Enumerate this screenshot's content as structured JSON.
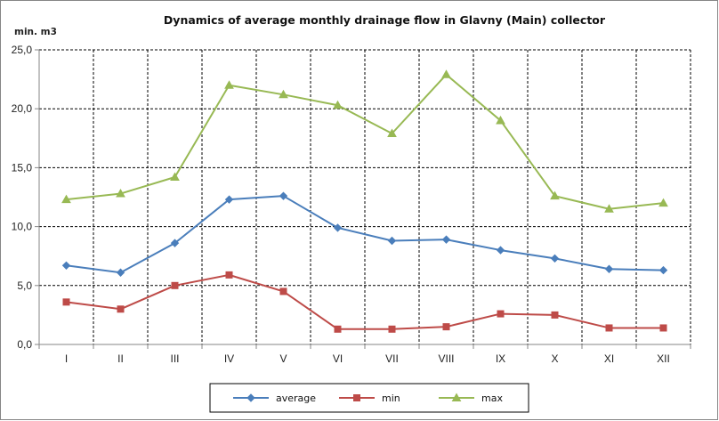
{
  "chart_data": {
    "type": "line",
    "title": "Dynamics of average monthly drainage flow in Glavny (Main) collector",
    "ylabel": "min. m3",
    "xlabel": "",
    "categories": [
      "I",
      "II",
      "III",
      "IV",
      "V",
      "VI",
      "VII",
      "VIII",
      "IX",
      "X",
      "XI",
      "XII"
    ],
    "ylim": [
      0,
      25
    ],
    "yticks": [
      "0,0",
      "5,0",
      "10,0",
      "15,0",
      "20,0",
      "25,0"
    ],
    "ytick_values": [
      0,
      5,
      10,
      15,
      20,
      25
    ],
    "grid": true,
    "legend_position": "bottom",
    "series": [
      {
        "name": "average",
        "color": "#4a7ebb",
        "marker": "diamond",
        "values": [
          6.7,
          6.1,
          8.6,
          12.3,
          12.6,
          9.9,
          8.8,
          8.9,
          8.0,
          7.3,
          6.4,
          6.3
        ]
      },
      {
        "name": "min",
        "color": "#be4b48",
        "marker": "square",
        "values": [
          3.6,
          3.0,
          5.0,
          5.9,
          4.5,
          1.3,
          1.3,
          1.5,
          2.6,
          2.5,
          1.4,
          1.4
        ]
      },
      {
        "name": "max",
        "color": "#98b954",
        "marker": "triangle",
        "values": [
          12.3,
          12.8,
          14.2,
          22.0,
          21.2,
          20.3,
          17.9,
          22.9,
          19.0,
          12.6,
          11.5,
          12.0
        ]
      }
    ]
  }
}
